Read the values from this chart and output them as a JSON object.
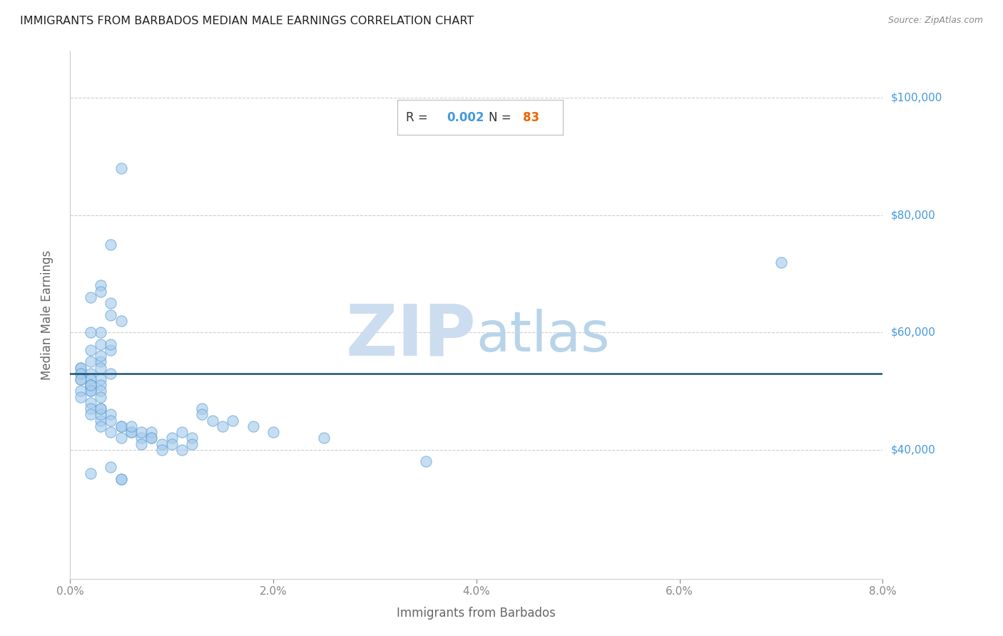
{
  "title": "IMMIGRANTS FROM BARBADOS MEDIAN MALE EARNINGS CORRELATION CHART",
  "source": "Source: ZipAtlas.com",
  "xlabel": "Immigrants from Barbados",
  "ylabel": "Median Male Earnings",
  "R": "0.002",
  "N": "83",
  "xlim": [
    0.0,
    0.08
  ],
  "ylim": [
    18000,
    108000
  ],
  "yticks": [
    40000,
    60000,
    80000,
    100000
  ],
  "ytick_labels": [
    "$40,000",
    "$60,000",
    "$80,000",
    "$100,000"
  ],
  "xtick_labels": [
    "0.0%",
    "2.0%",
    "4.0%",
    "6.0%",
    "8.0%"
  ],
  "xticks": [
    0.0,
    0.02,
    0.04,
    0.06,
    0.08
  ],
  "regression_y": 53000,
  "scatter_color": "#a8ccec",
  "scatter_edgecolor": "#5a9fd4",
  "scatter_alpha": 0.65,
  "scatter_size": 120,
  "regression_color": "#1a5276",
  "title_color": "#222222",
  "source_color": "#888888",
  "axis_label_color": "#666666",
  "ytick_color": "#4499dd",
  "xtick_color": "#333333",
  "grid_color": "#cccccc",
  "watermark_text": "ZIPatlas",
  "watermark_color": "#ddeeff",
  "R_label_color": "#333333",
  "R_value_color": "#4499dd",
  "N_label_color": "#333333",
  "N_value_color": "#ee6600",
  "scatter_x": [
    0.005,
    0.004,
    0.003,
    0.004,
    0.005,
    0.003,
    0.004,
    0.003,
    0.002,
    0.003,
    0.004,
    0.002,
    0.003,
    0.004,
    0.002,
    0.003,
    0.003,
    0.004,
    0.002,
    0.003,
    0.001,
    0.002,
    0.003,
    0.001,
    0.002,
    0.001,
    0.002,
    0.003,
    0.001,
    0.002,
    0.001,
    0.002,
    0.001,
    0.002,
    0.003,
    0.002,
    0.001,
    0.002,
    0.001,
    0.002,
    0.003,
    0.002,
    0.003,
    0.004,
    0.003,
    0.004,
    0.005,
    0.004,
    0.005,
    0.006,
    0.005,
    0.006,
    0.007,
    0.006,
    0.007,
    0.008,
    0.007,
    0.008,
    0.008,
    0.009,
    0.009,
    0.01,
    0.01,
    0.011,
    0.011,
    0.012,
    0.012,
    0.013,
    0.013,
    0.014,
    0.015,
    0.016,
    0.018,
    0.02,
    0.025,
    0.035,
    0.07,
    0.005,
    0.003,
    0.002,
    0.003,
    0.004,
    0.005
  ],
  "scatter_y": [
    88000,
    75000,
    68000,
    65000,
    62000,
    67000,
    63000,
    60000,
    66000,
    58000,
    57000,
    60000,
    55000,
    58000,
    57000,
    54000,
    56000,
    53000,
    55000,
    52000,
    54000,
    53000,
    51000,
    53000,
    52000,
    54000,
    51000,
    50000,
    52000,
    51000,
    53000,
    50000,
    52000,
    50000,
    49000,
    51000,
    50000,
    48000,
    49000,
    47000,
    47000,
    46000,
    45000,
    46000,
    44000,
    45000,
    44000,
    43000,
    44000,
    43000,
    42000,
    43000,
    42000,
    44000,
    43000,
    42000,
    41000,
    43000,
    42000,
    41000,
    40000,
    42000,
    41000,
    40000,
    43000,
    42000,
    41000,
    47000,
    46000,
    45000,
    44000,
    45000,
    44000,
    43000,
    42000,
    38000,
    72000,
    35000,
    46000,
    36000,
    47000,
    37000,
    35000
  ]
}
